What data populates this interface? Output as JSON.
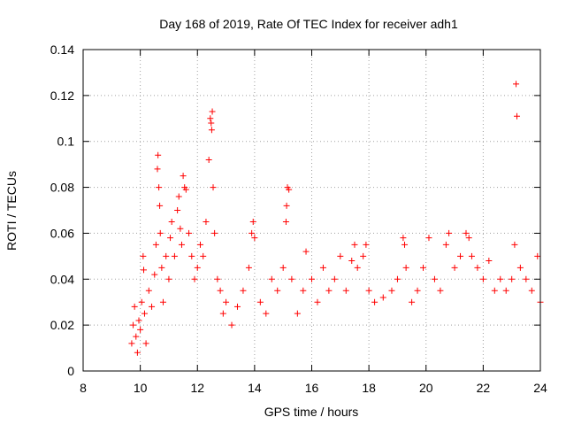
{
  "chart_data": {
    "type": "scatter",
    "title": "Day 168 of 2019, Rate Of TEC Index for receiver adh1",
    "xlabel": "GPS time / hours",
    "ylabel": "ROTI / TECUs",
    "xlim": [
      8,
      24
    ],
    "ylim": [
      0,
      0.14
    ],
    "x_ticks": [
      "8",
      "10",
      "12",
      "14",
      "16",
      "18",
      "20",
      "22",
      "24"
    ],
    "y_ticks": [
      "0",
      "0.02",
      "0.04",
      "0.06",
      "0.08",
      "0.1",
      "0.12",
      "0.14"
    ],
    "grid": true,
    "marker": "+",
    "color": "#ff0000",
    "series": [
      {
        "name": "ROTI",
        "points": [
          [
            9.7,
            0.012
          ],
          [
            9.75,
            0.02
          ],
          [
            9.8,
            0.028
          ],
          [
            9.85,
            0.015
          ],
          [
            9.9,
            0.008
          ],
          [
            9.95,
            0.022
          ],
          [
            10.0,
            0.018
          ],
          [
            10.05,
            0.03
          ],
          [
            10.1,
            0.05
          ],
          [
            10.12,
            0.044
          ],
          [
            10.15,
            0.025
          ],
          [
            10.2,
            0.012
          ],
          [
            10.3,
            0.035
          ],
          [
            10.4,
            0.028
          ],
          [
            10.5,
            0.042
          ],
          [
            10.55,
            0.055
          ],
          [
            10.6,
            0.088
          ],
          [
            10.62,
            0.094
          ],
          [
            10.65,
            0.08
          ],
          [
            10.68,
            0.072
          ],
          [
            10.7,
            0.06
          ],
          [
            10.75,
            0.045
          ],
          [
            10.8,
            0.03
          ],
          [
            10.9,
            0.05
          ],
          [
            11.0,
            0.04
          ],
          [
            11.05,
            0.058
          ],
          [
            11.1,
            0.065
          ],
          [
            11.2,
            0.05
          ],
          [
            11.3,
            0.07
          ],
          [
            11.35,
            0.076
          ],
          [
            11.4,
            0.062
          ],
          [
            11.45,
            0.055
          ],
          [
            11.5,
            0.085
          ],
          [
            11.55,
            0.08
          ],
          [
            11.6,
            0.079
          ],
          [
            11.7,
            0.06
          ],
          [
            11.8,
            0.05
          ],
          [
            11.9,
            0.04
          ],
          [
            12.0,
            0.045
          ],
          [
            12.1,
            0.055
          ],
          [
            12.2,
            0.05
          ],
          [
            12.3,
            0.065
          ],
          [
            12.4,
            0.092
          ],
          [
            12.45,
            0.11
          ],
          [
            12.48,
            0.108
          ],
          [
            12.5,
            0.105
          ],
          [
            12.52,
            0.113
          ],
          [
            12.55,
            0.08
          ],
          [
            12.6,
            0.06
          ],
          [
            12.7,
            0.04
          ],
          [
            12.8,
            0.035
          ],
          [
            12.9,
            0.025
          ],
          [
            13.0,
            0.03
          ],
          [
            13.2,
            0.02
          ],
          [
            13.4,
            0.028
          ],
          [
            13.6,
            0.035
          ],
          [
            13.8,
            0.045
          ],
          [
            13.9,
            0.06
          ],
          [
            13.95,
            0.065
          ],
          [
            14.0,
            0.058
          ],
          [
            14.2,
            0.03
          ],
          [
            14.4,
            0.025
          ],
          [
            14.6,
            0.04
          ],
          [
            14.8,
            0.035
          ],
          [
            15.0,
            0.045
          ],
          [
            15.1,
            0.065
          ],
          [
            15.12,
            0.072
          ],
          [
            15.15,
            0.08
          ],
          [
            15.2,
            0.079
          ],
          [
            15.3,
            0.04
          ],
          [
            15.5,
            0.025
          ],
          [
            15.7,
            0.035
          ],
          [
            15.8,
            0.052
          ],
          [
            16.0,
            0.04
          ],
          [
            16.2,
            0.03
          ],
          [
            16.4,
            0.045
          ],
          [
            16.6,
            0.035
          ],
          [
            16.8,
            0.04
          ],
          [
            17.0,
            0.05
          ],
          [
            17.2,
            0.035
          ],
          [
            17.4,
            0.048
          ],
          [
            17.5,
            0.055
          ],
          [
            17.6,
            0.045
          ],
          [
            17.8,
            0.05
          ],
          [
            17.9,
            0.055
          ],
          [
            18.0,
            0.035
          ],
          [
            18.2,
            0.03
          ],
          [
            18.5,
            0.032
          ],
          [
            18.8,
            0.035
          ],
          [
            19.0,
            0.04
          ],
          [
            19.2,
            0.058
          ],
          [
            19.25,
            0.055
          ],
          [
            19.3,
            0.045
          ],
          [
            19.5,
            0.03
          ],
          [
            19.7,
            0.035
          ],
          [
            19.9,
            0.045
          ],
          [
            20.1,
            0.058
          ],
          [
            20.3,
            0.04
          ],
          [
            20.5,
            0.035
          ],
          [
            20.7,
            0.055
          ],
          [
            20.8,
            0.06
          ],
          [
            21.0,
            0.045
          ],
          [
            21.2,
            0.05
          ],
          [
            21.4,
            0.06
          ],
          [
            21.5,
            0.058
          ],
          [
            21.6,
            0.05
          ],
          [
            21.8,
            0.045
          ],
          [
            22.0,
            0.04
          ],
          [
            22.2,
            0.048
          ],
          [
            22.4,
            0.035
          ],
          [
            22.6,
            0.04
          ],
          [
            22.8,
            0.035
          ],
          [
            23.0,
            0.04
          ],
          [
            23.1,
            0.055
          ],
          [
            23.15,
            0.125
          ],
          [
            23.18,
            0.111
          ],
          [
            23.3,
            0.045
          ],
          [
            23.5,
            0.04
          ],
          [
            23.7,
            0.035
          ],
          [
            23.9,
            0.05
          ],
          [
            24.0,
            0.03
          ]
        ]
      }
    ]
  }
}
